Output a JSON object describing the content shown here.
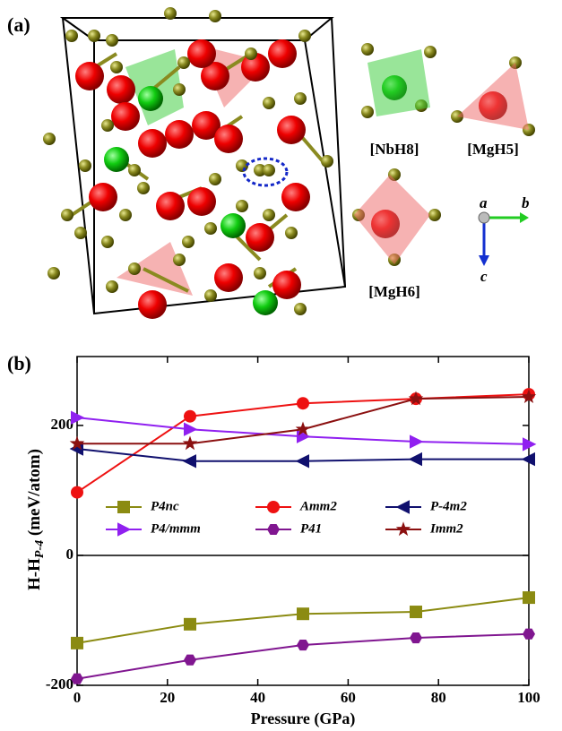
{
  "panel_a": {
    "label": "(a)",
    "units": [
      "[NbH8]",
      "[MgH5]",
      "[MgH6]"
    ],
    "axes": [
      "a",
      "b",
      "c"
    ]
  },
  "chart_data": {
    "type": "line",
    "panel_label": "(b)",
    "xlabel": "Pressure (GPa)",
    "ylabel": [
      "H-H",
      "P-4",
      " (meV/atom)"
    ],
    "x": [
      0,
      25,
      50,
      75,
      100
    ],
    "xlim": [
      0,
      100
    ],
    "xticks": [
      0,
      20,
      40,
      60,
      80,
      100
    ],
    "ylim": [
      -200,
      306
    ],
    "yticks": [
      -200,
      0,
      200
    ],
    "series": [
      {
        "name": "P4nc",
        "color": "#8b8b12",
        "marker": "square",
        "values": [
          -135,
          -106,
          -90,
          -87,
          -65
        ]
      },
      {
        "name": "Amm2",
        "color": "#ee1111",
        "marker": "circle",
        "values": [
          97,
          214,
          234,
          241,
          248
        ]
      },
      {
        "name": "P-4m2",
        "color": "#10106e",
        "marker": "triangle-left",
        "values": [
          164,
          145,
          145,
          148,
          148
        ]
      },
      {
        "name": "P4/mmm",
        "color": "#9020f0",
        "marker": "triangle-right",
        "values": [
          212,
          194,
          183,
          175,
          171
        ]
      },
      {
        "name": "P41",
        "color": "#801690",
        "marker": "hexagon",
        "values": [
          -190,
          -161,
          -138,
          -127,
          -121
        ]
      },
      {
        "name": "Imm2",
        "color": "#8b1010",
        "marker": "star",
        "values": [
          172,
          172,
          194,
          241,
          244
        ]
      }
    ]
  }
}
